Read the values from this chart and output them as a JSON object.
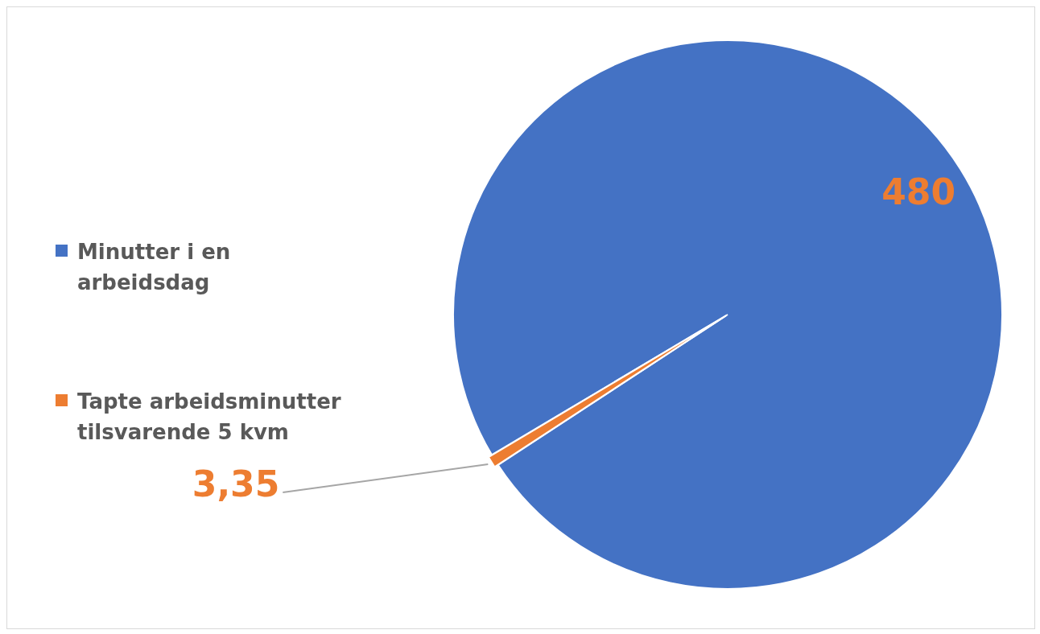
{
  "chart_data": {
    "type": "pie",
    "categories": [
      "Minutter i en arbeidsdag",
      "Tapte arbeidsminutter tilsvarende 5 kvm"
    ],
    "values": [
      480,
      3.35
    ],
    "colors": [
      "#4472c4",
      "#ed7d31"
    ],
    "value_labels": [
      "480",
      "3,35"
    ],
    "legend": "left"
  }
}
